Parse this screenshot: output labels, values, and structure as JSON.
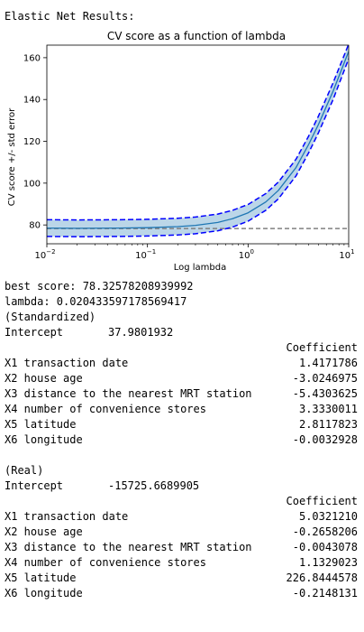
{
  "output": {
    "heading": "Elastic Net Results:",
    "best_score": "best score: 78.32578208939992",
    "lambda": "lambda: 0.020433597178569417",
    "standardized": {
      "label": "(Standardized)",
      "intercept_label": "Intercept",
      "intercept_value": "37.9801932",
      "column_header": "Coefficient",
      "rows": [
        {
          "name": "X1 transaction date",
          "value": "1.4171786"
        },
        {
          "name": "X2 house age",
          "value": "-3.0246975"
        },
        {
          "name": "X3 distance to the nearest MRT station",
          "value": "-5.4303625"
        },
        {
          "name": "X4 number of convenience stores",
          "value": "3.3330011"
        },
        {
          "name": "X5 latitude",
          "value": "2.8117823"
        },
        {
          "name": "X6 longitude",
          "value": "-0.0032928"
        }
      ]
    },
    "real": {
      "label": "(Real)",
      "intercept_label": "Intercept",
      "intercept_value": "-15725.6689905",
      "column_header": "Coefficient",
      "rows": [
        {
          "name": "X1 transaction date",
          "value": "5.0321210"
        },
        {
          "name": "X2 house age",
          "value": "-0.2658206"
        },
        {
          "name": "X3 distance to the nearest MRT station",
          "value": "-0.0043078"
        },
        {
          "name": "X4 number of convenience stores",
          "value": "1.1329023"
        },
        {
          "name": "X5 latitude",
          "value": "226.8444578"
        },
        {
          "name": "X6 longitude",
          "value": "-0.2148131"
        }
      ]
    }
  },
  "chart_data": {
    "type": "line",
    "title": "CV score as a function of lambda",
    "xlabel": "Log lambda",
    "ylabel": "CV score +/- std error",
    "xscale": "log",
    "xlim": [
      0.01,
      10
    ],
    "ylim": [
      71,
      166
    ],
    "x_ticks": [
      {
        "value": 0.01,
        "base": "10",
        "exp": "−2"
      },
      {
        "value": 0.1,
        "base": "10",
        "exp": "−1"
      },
      {
        "value": 1,
        "base": "10",
        "exp": "0"
      },
      {
        "value": 10,
        "base": "10",
        "exp": "1"
      }
    ],
    "y_ticks": [
      "80",
      "100",
      "120",
      "140",
      "160"
    ],
    "series": [
      {
        "role": "mean",
        "color": "#1f77b4",
        "x": [
          0.01,
          0.02,
          0.05,
          0.1,
          0.2,
          0.3,
          0.5,
          0.7,
          1.0,
          1.5,
          2,
          3,
          4,
          5,
          7,
          10
        ],
        "y": [
          78.5,
          78.4,
          78.5,
          78.7,
          79.2,
          79.8,
          81.2,
          83.0,
          85.8,
          91.0,
          96.5,
          107.5,
          118.5,
          128.0,
          144.0,
          163.0
        ]
      },
      {
        "role": "upper",
        "color": "#0000ff",
        "style": "dashed",
        "x": [
          0.01,
          0.02,
          0.05,
          0.1,
          0.2,
          0.3,
          0.5,
          0.7,
          1.0,
          1.5,
          2,
          3,
          4,
          5,
          7,
          10
        ],
        "y": [
          82.5,
          82.4,
          82.5,
          82.7,
          83.2,
          83.8,
          85.2,
          87.0,
          89.8,
          95.0,
          100.5,
          111.5,
          122.5,
          132.0,
          148.0,
          166.5
        ]
      },
      {
        "role": "lower",
        "color": "#0000ff",
        "style": "dashed",
        "x": [
          0.01,
          0.02,
          0.05,
          0.1,
          0.2,
          0.3,
          0.5,
          0.7,
          1.0,
          1.5,
          2,
          3,
          4,
          5,
          7,
          10
        ],
        "y": [
          74.5,
          74.4,
          74.5,
          74.7,
          75.2,
          75.8,
          77.2,
          79.0,
          81.8,
          87.0,
          92.5,
          103.5,
          114.5,
          124.0,
          140.0,
          159.5
        ]
      }
    ],
    "reference_line": {
      "y": 78.3,
      "color": "#808080",
      "style": "dashed"
    },
    "band_color": "#1f77b4"
  }
}
